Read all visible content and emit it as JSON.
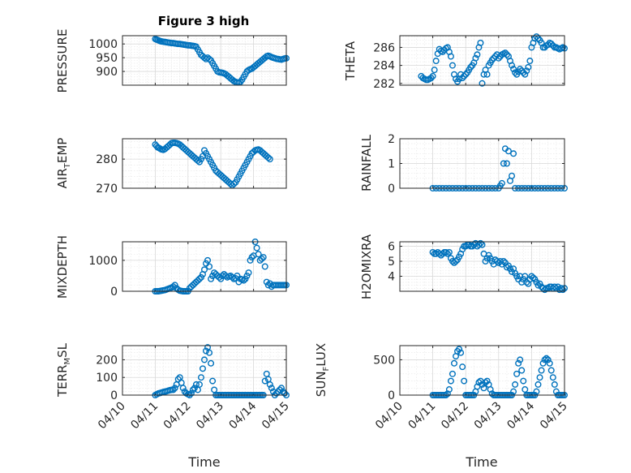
{
  "figure_title": "Figure 3 high",
  "marker_color": "#0072BD",
  "chart_data": [
    {
      "type": "scatter",
      "name": "PRESSURE",
      "ylabel": "PRESSURE",
      "ylim": [
        850,
        1030
      ],
      "yticks": [
        900,
        950,
        1000
      ],
      "xlim": [
        0,
        5
      ],
      "xlabel": "",
      "x": [
        1.0,
        1.04,
        1.08,
        1.12,
        1.16,
        1.2,
        1.25,
        1.3,
        1.35,
        1.4,
        1.45,
        1.5,
        1.55,
        1.6,
        1.65,
        1.7,
        1.75,
        1.8,
        1.85,
        1.9,
        1.95,
        2.0,
        2.05,
        2.1,
        2.15,
        2.2,
        2.25,
        2.3,
        2.35,
        2.4,
        2.45,
        2.5,
        2.55,
        2.6,
        2.65,
        2.7,
        2.75,
        2.8,
        2.85,
        2.9,
        2.95,
        3.0,
        3.05,
        3.1,
        3.15,
        3.2,
        3.25,
        3.3,
        3.35,
        3.4,
        3.45,
        3.5,
        3.55,
        3.6,
        3.65,
        3.7,
        3.75,
        3.8,
        3.85,
        3.9,
        3.95,
        4.0,
        4.05,
        4.1,
        4.15,
        4.2,
        4.25,
        4.3,
        4.35,
        4.4,
        4.45,
        4.5,
        4.55,
        4.6,
        4.65,
        4.7,
        4.75,
        4.8,
        4.85,
        4.9,
        4.95,
        5.0
      ],
      "y": [
        1018,
        1016,
        1014,
        1012,
        1010,
        1009,
        1008,
        1007,
        1006,
        1005,
        1004,
        1003,
        1003,
        1002,
        1001,
        1000,
        1000,
        999,
        998,
        997,
        996,
        995,
        995,
        994,
        993,
        992,
        990,
        980,
        970,
        960,
        955,
        950,
        945,
        950,
        945,
        940,
        930,
        920,
        910,
        900,
        897,
        896,
        895,
        893,
        890,
        885,
        880,
        875,
        870,
        865,
        862,
        860,
        860,
        862,
        870,
        880,
        890,
        900,
        905,
        908,
        910,
        915,
        920,
        925,
        930,
        935,
        940,
        945,
        950,
        955,
        957,
        955,
        952,
        950,
        948,
        946,
        945,
        944,
        943,
        945,
        947,
        948
      ]
    },
    {
      "type": "scatter",
      "name": "THETA",
      "ylabel": "THETA",
      "ylim": [
        281.8,
        287.3
      ],
      "yticks": [
        282,
        284,
        286
      ],
      "xlim": [
        0,
        5
      ],
      "xlabel": "",
      "x": [
        0.65,
        0.7,
        0.75,
        0.8,
        0.85,
        0.9,
        0.95,
        1.0,
        1.05,
        1.1,
        1.15,
        1.2,
        1.25,
        1.3,
        1.35,
        1.4,
        1.45,
        1.5,
        1.55,
        1.6,
        1.65,
        1.7,
        1.75,
        1.8,
        1.85,
        1.9,
        1.95,
        2.0,
        2.05,
        2.1,
        2.15,
        2.2,
        2.25,
        2.3,
        2.35,
        2.4,
        2.45,
        2.5,
        2.55,
        2.6,
        2.65,
        2.7,
        2.75,
        2.8,
        2.85,
        2.9,
        2.95,
        3.0,
        3.05,
        3.1,
        3.15,
        3.2,
        3.25,
        3.3,
        3.35,
        3.4,
        3.45,
        3.5,
        3.55,
        3.6,
        3.65,
        3.7,
        3.75,
        3.8,
        3.85,
        3.9,
        3.95,
        4.0,
        4.05,
        4.1,
        4.15,
        4.2,
        4.25,
        4.3,
        4.35,
        4.4,
        4.45,
        4.5,
        4.55,
        4.6,
        4.65,
        4.7,
        4.75,
        4.8,
        4.85,
        4.9,
        4.95,
        5.0
      ],
      "y": [
        282.8,
        282.6,
        282.5,
        282.4,
        282.4,
        282.5,
        282.6,
        282.8,
        283.5,
        284.5,
        285.3,
        285.8,
        285.6,
        285.5,
        285.7,
        285.9,
        286.0,
        285.5,
        285.0,
        284.0,
        283.0,
        282.5,
        282.2,
        282.5,
        283.0,
        282.6,
        282.8,
        283.0,
        283.2,
        283.5,
        283.8,
        284.0,
        284.3,
        284.8,
        285.2,
        286.0,
        286.5,
        282.0,
        283.0,
        283.5,
        283.0,
        284.0,
        284.3,
        284.6,
        284.8,
        285.0,
        285.2,
        284.8,
        285.0,
        285.2,
        285.3,
        285.4,
        285.2,
        285.0,
        284.5,
        284.0,
        283.6,
        283.2,
        283.0,
        283.3,
        283.6,
        283.4,
        283.2,
        283.0,
        283.4,
        283.8,
        284.5,
        286.0,
        286.5,
        287.0,
        287.2,
        287.0,
        286.8,
        286.5,
        286.0,
        286.0,
        286.2,
        286.3,
        286.5,
        286.4,
        286.2,
        286.0,
        286.0,
        285.9,
        285.8,
        285.9,
        286.0,
        285.9
      ]
    },
    {
      "type": "scatter",
      "name": "AIR_TEMP",
      "ylabel": "AIR_TEMP",
      "ylim": [
        270,
        287
      ],
      "yticks": [
        270,
        280
      ],
      "xlim": [
        0,
        5
      ],
      "xlabel": "",
      "x": [
        1.0,
        1.04,
        1.08,
        1.12,
        1.16,
        1.2,
        1.25,
        1.3,
        1.35,
        1.4,
        1.45,
        1.5,
        1.55,
        1.6,
        1.65,
        1.7,
        1.75,
        1.8,
        1.85,
        1.9,
        1.95,
        2.0,
        2.05,
        2.1,
        2.15,
        2.2,
        2.25,
        2.3,
        2.35,
        2.4,
        2.45,
        2.5,
        2.55,
        2.6,
        2.65,
        2.7,
        2.75,
        2.8,
        2.85,
        2.9,
        2.95,
        3.0,
        3.05,
        3.1,
        3.15,
        3.2,
        3.25,
        3.3,
        3.35,
        3.4,
        3.45,
        3.5,
        3.55,
        3.6,
        3.65,
        3.7,
        3.75,
        3.8,
        3.85,
        3.9,
        3.95,
        4.0,
        4.05,
        4.1,
        4.15,
        4.2,
        4.25,
        4.3,
        4.35,
        4.4,
        4.45,
        4.5
      ],
      "y": [
        285,
        284.5,
        284,
        283.8,
        283.5,
        283.3,
        283.2,
        283.5,
        284,
        284.5,
        285,
        285.5,
        285.6,
        285.6,
        285.5,
        285.3,
        285,
        284.5,
        284,
        283.5,
        283,
        282.5,
        282,
        281.5,
        281,
        280.5,
        280,
        279.5,
        279,
        280,
        281,
        283,
        282,
        281,
        280,
        279,
        278,
        277,
        276,
        275.5,
        275,
        274.5,
        274,
        273.5,
        273,
        272.5,
        272,
        271.5,
        271,
        271.5,
        272,
        273,
        274,
        275,
        276,
        277,
        278,
        279,
        280,
        281,
        282,
        282.5,
        283,
        283.2,
        283.3,
        283,
        282.5,
        282,
        281.5,
        281,
        280.5,
        280
      ]
    },
    {
      "type": "scatter",
      "name": "RAINFALL",
      "ylabel": "RAINFALL",
      "ylim": [
        0,
        2
      ],
      "yticks": [
        0,
        1,
        2
      ],
      "xlim": [
        0,
        5
      ],
      "xlabel": "",
      "x": [
        1.0,
        1.1,
        1.2,
        1.3,
        1.4,
        1.5,
        1.6,
        1.7,
        1.8,
        1.9,
        2.0,
        2.1,
        2.2,
        2.3,
        2.4,
        2.5,
        2.6,
        2.7,
        2.8,
        2.9,
        3.0,
        3.05,
        3.1,
        3.15,
        3.2,
        3.25,
        3.3,
        3.35,
        3.4,
        3.45,
        3.5,
        3.6,
        3.7,
        3.8,
        3.9,
        4.0,
        4.1,
        4.2,
        4.3,
        4.4,
        4.5,
        4.6,
        4.7,
        4.8,
        4.9,
        5.0
      ],
      "y": [
        0,
        0,
        0,
        0,
        0,
        0,
        0,
        0,
        0,
        0,
        0,
        0,
        0,
        0,
        0,
        0,
        0,
        0,
        0,
        0,
        0,
        0.1,
        0.2,
        1.0,
        1.6,
        1.0,
        1.5,
        0.3,
        0.5,
        1.4,
        0,
        0,
        0,
        0,
        0,
        0,
        0,
        0,
        0,
        0,
        0,
        0,
        0,
        0,
        0,
        0
      ]
    },
    {
      "type": "scatter",
      "name": "MIXDEPTH",
      "ylabel": "MIXDEPTH",
      "ylim": [
        0,
        1600
      ],
      "yticks": [
        0,
        1000
      ],
      "xlim": [
        0,
        5
      ],
      "xlabel": "",
      "x": [
        1.0,
        1.05,
        1.1,
        1.15,
        1.2,
        1.25,
        1.3,
        1.35,
        1.4,
        1.45,
        1.5,
        1.55,
        1.6,
        1.65,
        1.7,
        1.75,
        1.8,
        1.85,
        1.9,
        1.95,
        2.0,
        2.05,
        2.1,
        2.15,
        2.2,
        2.25,
        2.3,
        2.35,
        2.4,
        2.45,
        2.5,
        2.55,
        2.6,
        2.65,
        2.7,
        2.75,
        2.8,
        2.85,
        2.9,
        2.95,
        3.0,
        3.05,
        3.1,
        3.15,
        3.2,
        3.25,
        3.3,
        3.35,
        3.4,
        3.45,
        3.5,
        3.55,
        3.6,
        3.65,
        3.7,
        3.75,
        3.8,
        3.85,
        3.9,
        3.95,
        4.0,
        4.05,
        4.1,
        4.15,
        4.2,
        4.25,
        4.3,
        4.35,
        4.4,
        4.45,
        4.5,
        4.55,
        4.6,
        4.65,
        4.7,
        4.75,
        4.8,
        4.85,
        4.9,
        4.95,
        5.0
      ],
      "y": [
        0,
        0,
        0,
        10,
        20,
        30,
        40,
        60,
        80,
        100,
        120,
        150,
        200,
        100,
        50,
        20,
        10,
        0,
        0,
        0,
        0,
        100,
        150,
        200,
        250,
        300,
        350,
        400,
        450,
        550,
        700,
        900,
        1000,
        800,
        400,
        500,
        600,
        550,
        500,
        450,
        400,
        500,
        550,
        500,
        450,
        480,
        500,
        450,
        400,
        420,
        500,
        300,
        400,
        380,
        350,
        400,
        500,
        600,
        1000,
        1100,
        1150,
        1600,
        1400,
        1200,
        1000,
        1050,
        1100,
        800,
        300,
        200,
        250,
        150,
        200,
        200,
        200,
        200,
        200,
        200,
        200,
        200,
        200
      ]
    },
    {
      "type": "scatter",
      "name": "H2OMIXRA",
      "ylabel": "H2OMIXRA",
      "ylim": [
        3,
        6.3
      ],
      "yticks": [
        4,
        5,
        6
      ],
      "xlim": [
        0,
        5
      ],
      "xlabel": "",
      "x": [
        1.0,
        1.05,
        1.1,
        1.15,
        1.2,
        1.25,
        1.3,
        1.35,
        1.4,
        1.45,
        1.5,
        1.55,
        1.6,
        1.65,
        1.7,
        1.75,
        1.8,
        1.85,
        1.9,
        1.95,
        2.0,
        2.05,
        2.1,
        2.15,
        2.2,
        2.25,
        2.3,
        2.35,
        2.4,
        2.45,
        2.5,
        2.55,
        2.6,
        2.65,
        2.7,
        2.75,
        2.8,
        2.85,
        2.9,
        2.95,
        3.0,
        3.05,
        3.1,
        3.15,
        3.2,
        3.25,
        3.3,
        3.35,
        3.4,
        3.45,
        3.5,
        3.55,
        3.6,
        3.65,
        3.7,
        3.75,
        3.8,
        3.85,
        3.9,
        3.95,
        4.0,
        4.05,
        4.1,
        4.15,
        4.2,
        4.25,
        4.3,
        4.35,
        4.4,
        4.45,
        4.5,
        4.55,
        4.6,
        4.65,
        4.7,
        4.75,
        4.8,
        4.85,
        4.9,
        4.95,
        5.0
      ],
      "y": [
        5.6,
        5.5,
        5.5,
        5.6,
        5.5,
        5.4,
        5.5,
        5.6,
        5.6,
        5.5,
        5.6,
        5.2,
        5.0,
        4.9,
        5.0,
        5.1,
        5.3,
        5.5,
        5.8,
        6.0,
        6.0,
        6.1,
        6.1,
        6.0,
        6.0,
        6.1,
        6.2,
        6.0,
        6.1,
        6.2,
        6.1,
        5.5,
        5.0,
        5.2,
        5.4,
        5.2,
        5.0,
        4.8,
        5.1,
        5.0,
        4.9,
        5.0,
        4.8,
        5.0,
        4.9,
        4.6,
        4.7,
        4.5,
        4.3,
        4.5,
        4.2,
        4.0,
        3.8,
        4.0,
        3.6,
        3.8,
        4.0,
        3.6,
        3.5,
        3.8,
        4.0,
        3.9,
        3.8,
        3.6,
        3.4,
        3.5,
        3.3,
        3.2,
        3.1,
        3.2,
        3.2,
        3.3,
        3.3,
        3.2,
        3.3,
        3.2,
        3.3,
        3.1,
        3.2,
        3.1,
        3.2
      ]
    },
    {
      "type": "scatter",
      "name": "TERR_MSL",
      "ylabel": "TERR_MSL",
      "ylim": [
        0,
        280
      ],
      "yticks": [
        0,
        100,
        200
      ],
      "xlim": [
        0,
        5
      ],
      "xlabel": "Time",
      "xticklabels": [
        "04/10",
        "04/11",
        "04/12",
        "04/13",
        "04/14",
        "04/15"
      ],
      "x": [
        1.0,
        1.05,
        1.1,
        1.15,
        1.2,
        1.25,
        1.3,
        1.35,
        1.4,
        1.45,
        1.5,
        1.55,
        1.6,
        1.65,
        1.7,
        1.75,
        1.8,
        1.85,
        1.9,
        1.95,
        2.0,
        2.05,
        2.1,
        2.15,
        2.2,
        2.25,
        2.3,
        2.35,
        2.4,
        2.45,
        2.5,
        2.55,
        2.6,
        2.65,
        2.7,
        2.75,
        2.8,
        2.85,
        2.9,
        2.95,
        3.0,
        3.05,
        3.1,
        3.15,
        3.2,
        3.25,
        3.3,
        3.35,
        3.4,
        3.45,
        3.5,
        3.55,
        3.6,
        3.65,
        3.7,
        3.75,
        3.8,
        3.85,
        3.9,
        3.95,
        4.0,
        4.05,
        4.1,
        4.15,
        4.2,
        4.25,
        4.3,
        4.35,
        4.4,
        4.45,
        4.5,
        4.55,
        4.6,
        4.65,
        4.7,
        4.75,
        4.8,
        4.85,
        4.9,
        4.95,
        5.0
      ],
      "y": [
        0,
        5,
        10,
        12,
        15,
        18,
        20,
        22,
        25,
        28,
        30,
        30,
        40,
        60,
        90,
        100,
        70,
        40,
        20,
        10,
        5,
        0,
        10,
        30,
        40,
        60,
        30,
        60,
        100,
        150,
        200,
        250,
        270,
        240,
        180,
        80,
        30,
        0,
        0,
        0,
        0,
        0,
        0,
        0,
        0,
        0,
        0,
        0,
        0,
        0,
        0,
        0,
        0,
        0,
        0,
        0,
        0,
        0,
        0,
        0,
        0,
        0,
        0,
        0,
        0,
        0,
        0,
        80,
        120,
        90,
        60,
        40,
        20,
        0,
        10,
        20,
        30,
        40,
        20,
        10,
        0
      ]
    },
    {
      "type": "scatter",
      "name": "SUN_FLUX",
      "ylabel": "SUN_FLUX",
      "ylim": [
        0,
        700
      ],
      "yticks": [
        0,
        500
      ],
      "xlim": [
        0,
        5
      ],
      "xlabel": "Time",
      "xticklabels": [
        "04/10",
        "04/11",
        "04/12",
        "04/13",
        "04/14",
        "04/15"
      ],
      "x": [
        1.0,
        1.05,
        1.1,
        1.15,
        1.2,
        1.25,
        1.3,
        1.35,
        1.4,
        1.45,
        1.5,
        1.55,
        1.6,
        1.65,
        1.7,
        1.75,
        1.8,
        1.85,
        1.9,
        1.95,
        2.0,
        2.05,
        2.1,
        2.15,
        2.2,
        2.25,
        2.3,
        2.35,
        2.4,
        2.45,
        2.5,
        2.55,
        2.6,
        2.65,
        2.7,
        2.75,
        2.8,
        2.85,
        2.9,
        2.95,
        3.0,
        3.05,
        3.1,
        3.15,
        3.2,
        3.25,
        3.3,
        3.35,
        3.4,
        3.45,
        3.5,
        3.55,
        3.6,
        3.65,
        3.7,
        3.75,
        3.8,
        3.85,
        3.9,
        3.95,
        4.0,
        4.05,
        4.1,
        4.15,
        4.2,
        4.25,
        4.3,
        4.35,
        4.4,
        4.45,
        4.5,
        4.55,
        4.6,
        4.65,
        4.7,
        4.75,
        4.8,
        4.85,
        4.9,
        4.95,
        5.0
      ],
      "y": [
        0,
        0,
        0,
        0,
        0,
        0,
        0,
        0,
        0,
        20,
        80,
        200,
        300,
        450,
        550,
        620,
        650,
        600,
        400,
        200,
        0,
        0,
        0,
        0,
        0,
        0,
        50,
        120,
        180,
        200,
        150,
        100,
        180,
        200,
        150,
        80,
        20,
        0,
        0,
        0,
        0,
        0,
        0,
        0,
        0,
        0,
        0,
        0,
        0,
        50,
        150,
        300,
        450,
        500,
        350,
        200,
        80,
        0,
        0,
        0,
        0,
        0,
        0,
        50,
        150,
        250,
        350,
        450,
        500,
        520,
        500,
        450,
        350,
        250,
        150,
        50,
        0,
        0,
        0,
        0,
        0
      ]
    }
  ]
}
